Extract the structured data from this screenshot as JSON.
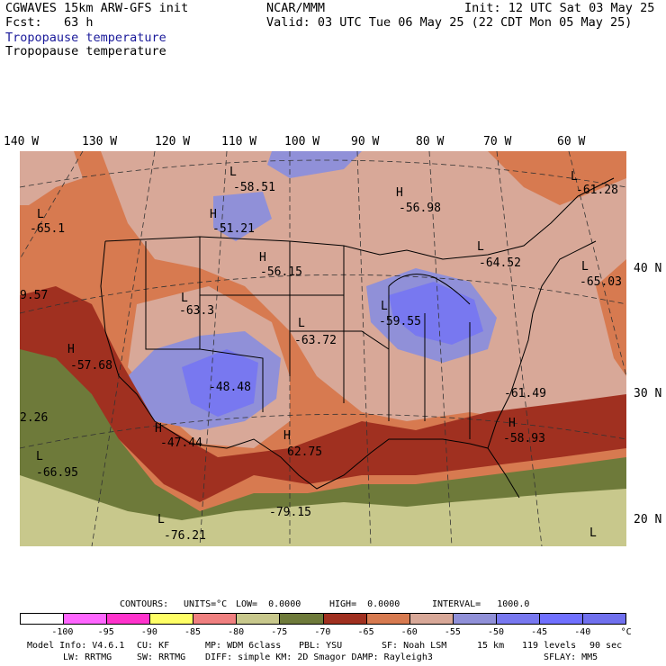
{
  "header": {
    "model": "CGWAVES 15km ARW-GFS init",
    "org": "NCAR/MMM",
    "init": "Init: 12 UTC Sat 03 May 25",
    "fcst": "Fcst:   63 h",
    "valid": "Valid: 03 UTC Tue 06 May 25 (22 CDT Mon 05 May 25)",
    "field_line1": "Tropopause temperature",
    "field_line2": "Tropopause temperature"
  },
  "map": {
    "lon_labels": [
      "140 W",
      "130 W",
      "120 W",
      "110 W",
      "100 W",
      "90 W",
      "80 W",
      "70 W",
      "60 W"
    ],
    "lat_labels": [
      "40 N",
      "30 N",
      "20 N"
    ],
    "features": [
      {
        "kind": "L",
        "value": "-58.51"
      },
      {
        "kind": "L",
        "value": "-65.1"
      },
      {
        "kind": "H",
        "value": "-51.21"
      },
      {
        "kind": "H",
        "value": "-56.98"
      },
      {
        "kind": "L",
        "value": "-61.28"
      },
      {
        "kind": "H",
        "value": "-56.15"
      },
      {
        "kind": "L",
        "value": "-64.52"
      },
      {
        "kind": "L",
        "value": "-65.03"
      },
      {
        "kind": "L",
        "value": "-63.3"
      },
      {
        "kind": "",
        "value": "9.57"
      },
      {
        "kind": "L",
        "value": "-59.55"
      },
      {
        "kind": "L",
        "value": "-63.72"
      },
      {
        "kind": "H",
        "value": "-57.68"
      },
      {
        "kind": "",
        "value": "-48.48"
      },
      {
        "kind": "",
        "value": "-61.49"
      },
      {
        "kind": "",
        "value": "2.26"
      },
      {
        "kind": "H",
        "value": "-47.44"
      },
      {
        "kind": "H",
        "value": "62.75"
      },
      {
        "kind": "H",
        "value": "-58.93"
      },
      {
        "kind": "L",
        "value": "-66.95"
      },
      {
        "kind": "",
        "value": "-79.15"
      },
      {
        "kind": "L",
        "value": "-76.21"
      },
      {
        "kind": "L",
        "value": ""
      }
    ]
  },
  "contours": {
    "label": "CONTOURS:",
    "units": "UNITS=°C",
    "low": "LOW=  0.0000",
    "high": "HIGH=  0.0000",
    "interval": "INTERVAL=   1000.0"
  },
  "legend": {
    "colors": [
      "#ffffff",
      "#ff66ff",
      "#ff33cc",
      "#ffff66",
      "#f08080",
      "#c8c88c",
      "#6e7a3a",
      "#a03020",
      "#d77a50",
      "#d8a898",
      "#9090d8",
      "#7878f0",
      "#7070ff",
      "#7070ee"
    ],
    "labels": [
      "-100",
      "-95",
      "-90",
      "-85",
      "-80",
      "-75",
      "-70",
      "-65",
      "-60",
      "-55",
      "-50",
      "-45",
      "-40",
      "°C"
    ]
  },
  "footer": {
    "line1": {
      "model_info": "Model Info: V4.6.1",
      "cu": "CU: KF",
      "mp": "MP: WDM 6class",
      "pbl": "PBL: YSU",
      "sf": "SF: Noah LSM",
      "res": "15 km",
      "levels": "119 levels",
      "dt": "90 sec"
    },
    "line2": {
      "lw": "LW: RRTMG",
      "sw": "SW: RRTMG",
      "diff": "DIFF: simple KM: 2D Smagor DAMP: Rayleigh3",
      "sflay": "SFLAY: MM5"
    }
  }
}
